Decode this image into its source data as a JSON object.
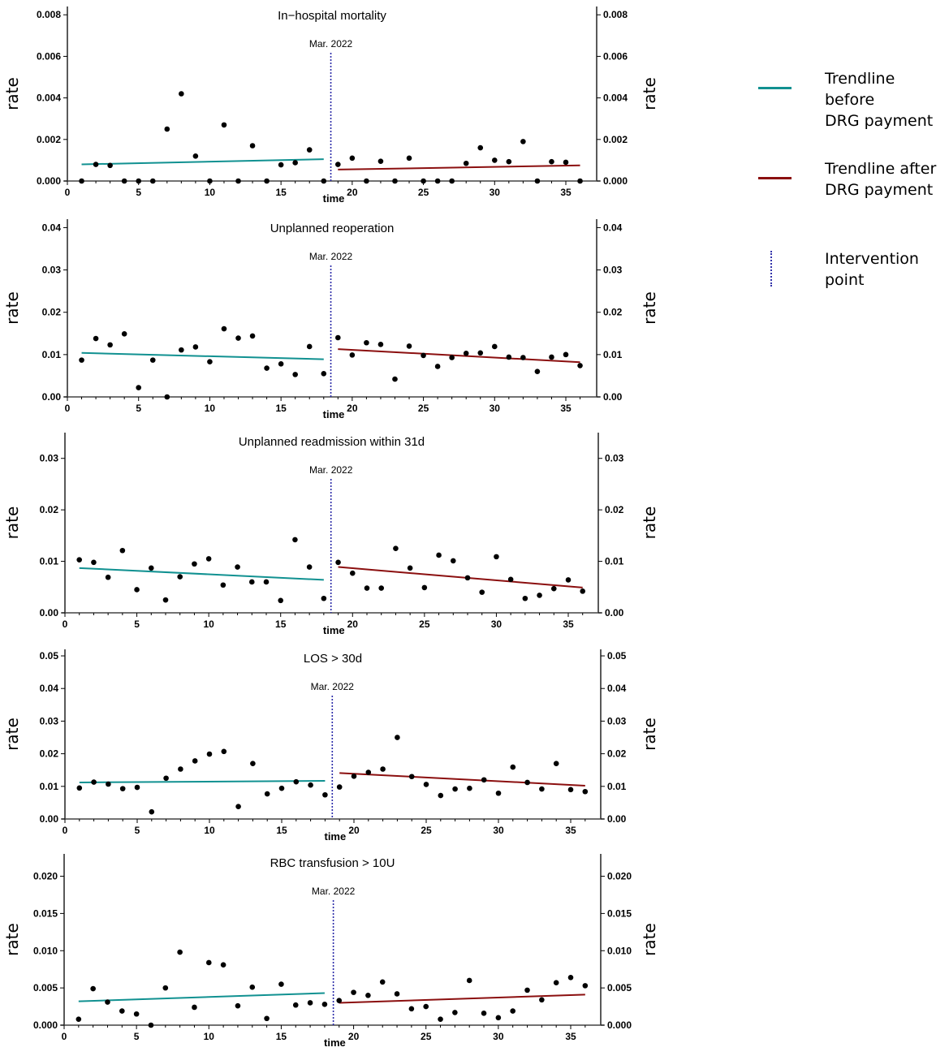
{
  "colors": {
    "before": "#119191",
    "after": "#8b0f0f",
    "intervention": "#2a2aa8",
    "points": "#000000"
  },
  "legend": [
    {
      "key": "before",
      "lines": [
        "Trendline before",
        "DRG payment"
      ]
    },
    {
      "key": "after",
      "lines": [
        "Trendline after",
        "DRG payment"
      ]
    },
    {
      "key": "intervention",
      "lines": [
        "Intervention",
        "point"
      ]
    }
  ],
  "chart_data": [
    {
      "type": "scatter",
      "title": "In−hospital mortality",
      "xlabel": "time",
      "ylabel": "rate",
      "intervention_x": 18.5,
      "intervention_label": "Mar. 2022",
      "xlim": [
        0,
        37
      ],
      "xticks": [
        0,
        5,
        10,
        15,
        20,
        25,
        30,
        35
      ],
      "ylim": [
        0,
        0.0084
      ],
      "yticks": [
        "0.000",
        "0.002",
        "0.004",
        "0.006",
        "0.008"
      ],
      "values": [
        0,
        0.0008,
        0.00075,
        0,
        0,
        0,
        0.0025,
        0.0042,
        0.0012,
        0,
        0.0027,
        0,
        0.0017,
        0,
        0.00078,
        0.00088,
        0.0015,
        0,
        0.0008,
        0.0011,
        0,
        0.00095,
        0,
        0.0011,
        0,
        0,
        0,
        0.00085,
        0.0016,
        0.001,
        0.00093,
        0.0019,
        0,
        0.00093,
        0.0009,
        0
      ],
      "trend_before": [
        [
          1,
          0.0008
        ],
        [
          18,
          0.00105
        ]
      ],
      "trend_after": [
        [
          19,
          0.00055
        ],
        [
          36,
          0.00075
        ]
      ]
    },
    {
      "type": "scatter",
      "title": "Unplanned reoperation",
      "xlabel": "time",
      "ylabel": "rate",
      "intervention_x": 18.5,
      "intervention_label": "Mar. 2022",
      "xlim": [
        0,
        37
      ],
      "xticks": [
        0,
        5,
        10,
        15,
        20,
        25,
        30,
        35
      ],
      "ylim": [
        0,
        0.042
      ],
      "yticks": [
        "0.00",
        "0.01",
        "0.02",
        "0.03",
        "0.04"
      ],
      "values": [
        0.0087,
        0.0138,
        0.0123,
        0.0149,
        0.0022,
        0.0087,
        0,
        0.0111,
        0.0118,
        0.0083,
        0.0161,
        0.0139,
        0.0144,
        0.0068,
        0.0078,
        0.0053,
        0.0119,
        0.0055,
        0.014,
        0.0099,
        0.0128,
        0.0124,
        0.0042,
        0.012,
        0.0098,
        0.0072,
        0.0093,
        0.0103,
        0.0104,
        0.0119,
        0.0094,
        0.0093,
        0.006,
        0.0094,
        0.01,
        0.0074
      ],
      "trend_before": [
        [
          1,
          0.0104
        ],
        [
          18,
          0.0089
        ]
      ],
      "trend_after": [
        [
          19,
          0.0113
        ],
        [
          36,
          0.0082
        ]
      ]
    },
    {
      "type": "scatter",
      "title": "Unplanned readmission within 31d",
      "xlabel": "time",
      "ylabel": "rate",
      "intervention_x": 18.5,
      "intervention_label": "Mar. 2022",
      "xlim": [
        0,
        37
      ],
      "xticks": [
        0,
        5,
        10,
        15,
        20,
        25,
        30,
        35
      ],
      "ylim": [
        0,
        0.035
      ],
      "yticks": [
        "0.00",
        "0.01",
        "0.02",
        "0.03"
      ],
      "values": [
        0.0103,
        0.0098,
        0.0069,
        0.0121,
        0.0045,
        0.0087,
        0.0025,
        0.007,
        0.0095,
        0.0105,
        0.0054,
        0.0089,
        0.006,
        0.006,
        0.0024,
        0.0142,
        0.0089,
        0.0028,
        0.0098,
        0.0077,
        0.0048,
        0.0048,
        0.0125,
        0.0087,
        0.0049,
        0.0112,
        0.0101,
        0.0068,
        0.004,
        0.0109,
        0.0065,
        0.0028,
        0.0034,
        0.0047,
        0.0064,
        0.0042
      ],
      "trend_before": [
        [
          1,
          0.0087
        ],
        [
          18,
          0.0064
        ]
      ],
      "trend_after": [
        [
          19,
          0.0089
        ],
        [
          36,
          0.0049
        ]
      ]
    },
    {
      "type": "scatter",
      "title": "LOS > 30d",
      "xlabel": "time",
      "ylabel": "rate",
      "intervention_x": 18.5,
      "intervention_label": "Mar. 2022",
      "xlim": [
        0,
        37
      ],
      "xticks": [
        0,
        5,
        10,
        15,
        20,
        25,
        30,
        35
      ],
      "ylim": [
        0,
        0.052
      ],
      "yticks": [
        "0.00",
        "0.01",
        "0.02",
        "0.03",
        "0.04",
        "0.05"
      ],
      "values": [
        0.0095,
        0.0113,
        0.0107,
        0.0093,
        0.0097,
        0.0022,
        0.0125,
        0.0153,
        0.0178,
        0.0199,
        0.0207,
        0.0038,
        0.017,
        0.0077,
        0.0094,
        0.0114,
        0.0104,
        0.0074,
        0.0098,
        0.0131,
        0.0143,
        0.0153,
        0.025,
        0.013,
        0.0106,
        0.0072,
        0.0092,
        0.0094,
        0.012,
        0.0079,
        0.0159,
        0.0112,
        0.0092,
        0.017,
        0.009,
        0.0084
      ],
      "trend_before": [
        [
          1,
          0.0112
        ],
        [
          18,
          0.0117
        ]
      ],
      "trend_after": [
        [
          19,
          0.0141
        ],
        [
          36,
          0.0102
        ]
      ]
    },
    {
      "type": "scatter",
      "title": "RBC transfusion > 10U",
      "xlabel": "time",
      "ylabel": "rate",
      "intervention_x": 18.6,
      "intervention_label": "Mar. 2022",
      "xlim": [
        0,
        37
      ],
      "xticks": [
        0,
        5,
        10,
        15,
        20,
        25,
        30,
        35
      ],
      "ylim": [
        0,
        0.023
      ],
      "yticks": [
        "0.000",
        "0.005",
        "0.010",
        "0.015",
        "0.020"
      ],
      "values": [
        0.0008,
        0.0049,
        0.0031,
        0.0019,
        0.0015,
        0,
        0.005,
        0.0098,
        0.0024,
        0.0084,
        0.0081,
        0.0026,
        0.0051,
        0.0009,
        0.0055,
        0.0027,
        0.003,
        0.0028,
        0.0033,
        0.0044,
        0.004,
        0.0058,
        0.0042,
        0.0022,
        0.0025,
        0.0008,
        0.0017,
        0.006,
        0.0016,
        0.001,
        0.0019,
        0.0047,
        0.0034,
        0.0057,
        0.0064,
        0.0053
      ],
      "trend_before": [
        [
          1,
          0.0032
        ],
        [
          18,
          0.0043
        ]
      ],
      "trend_after": [
        [
          19,
          0.003
        ],
        [
          36,
          0.0041
        ]
      ]
    }
  ]
}
